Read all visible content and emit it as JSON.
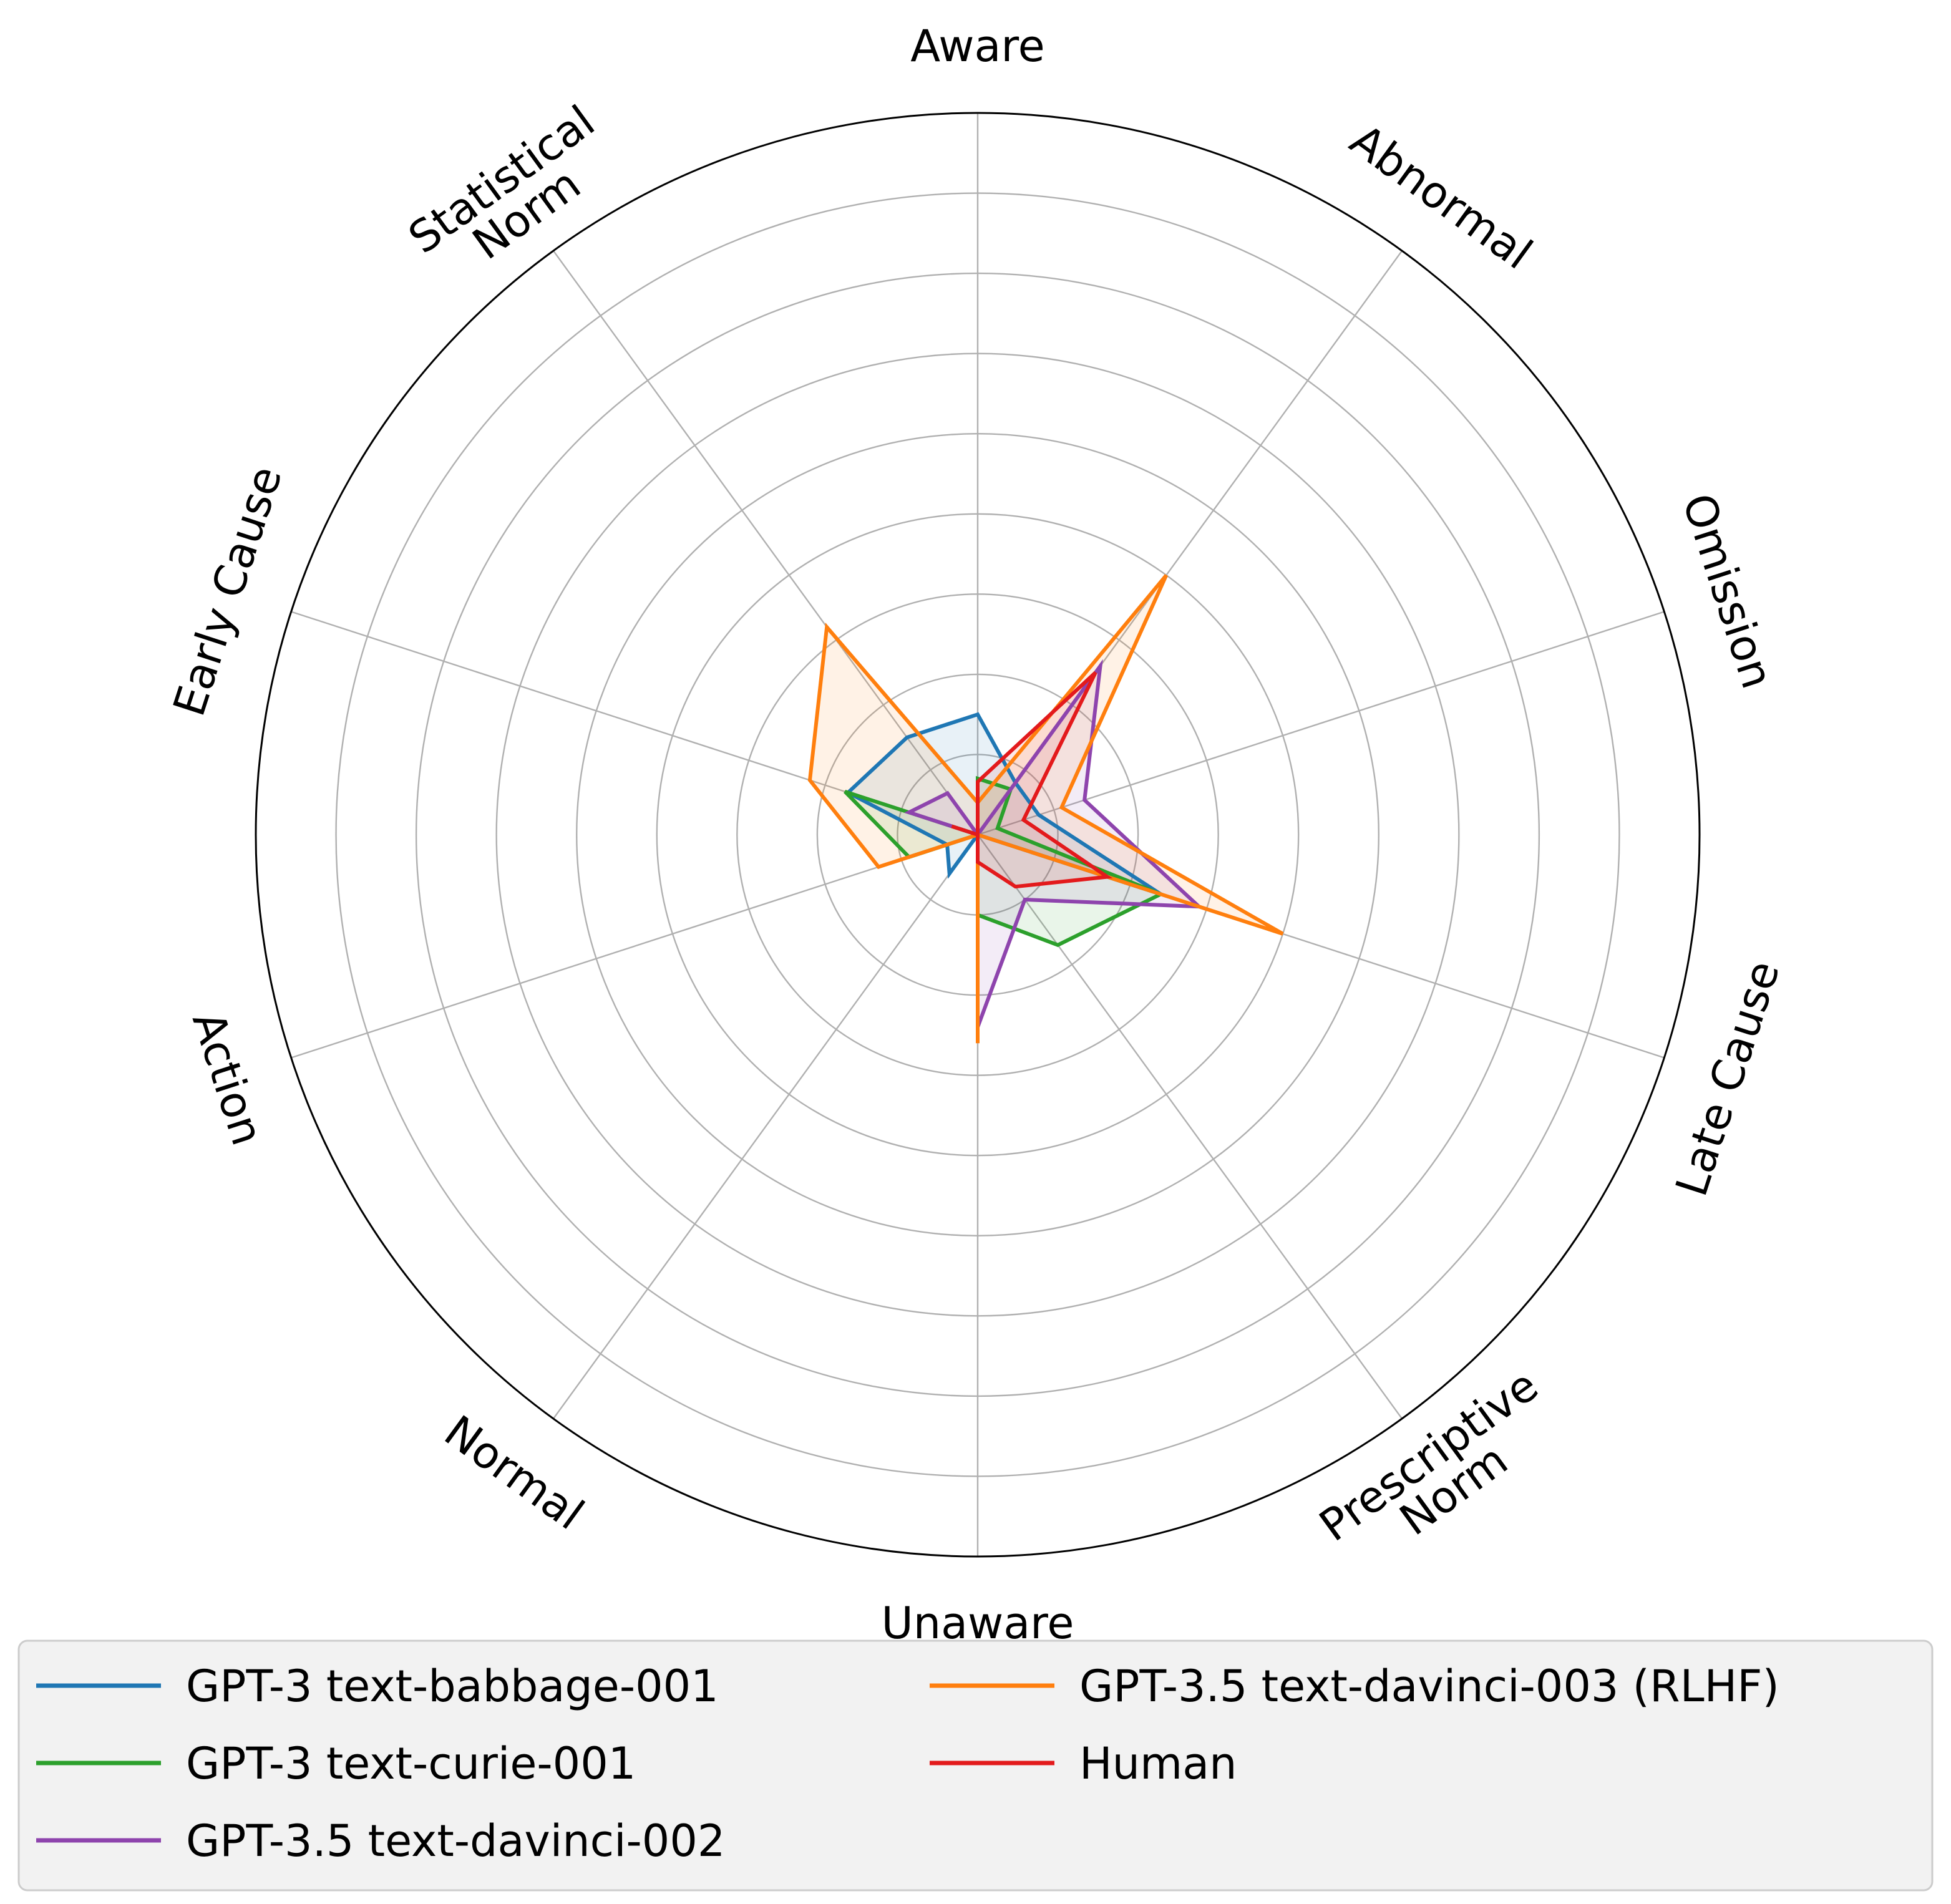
{
  "chart_data": {
    "type": "radar",
    "title": "",
    "axes": [
      "Aware",
      "Abnormal",
      "Omission",
      "Late Cause",
      "Prescriptive\nNorm",
      "Unaware",
      "Normal",
      "Action",
      "Early Cause",
      "Statistical\nNorm"
    ],
    "rlim": [
      0,
      0.45
    ],
    "grid": true,
    "grid_rings": [
      0.05,
      0.1,
      0.15,
      0.2,
      0.25,
      0.3,
      0.35,
      0.4
    ],
    "legend_position": "bottom",
    "legend_columns": 2,
    "series": [
      {
        "name": "GPT-3 text-babbage-001",
        "color": "#1f77b4",
        "values": [
          0.075,
          0.04,
          0.04,
          0.12,
          0.0,
          0.0,
          0.03,
          0.02,
          0.085,
          0.075
        ]
      },
      {
        "name": "GPT-3 text-curie-001",
        "color": "#2ca02c",
        "values": [
          0.035,
          0.035,
          0.013,
          0.12,
          0.085,
          0.05,
          0.0,
          0.045,
          0.087,
          0.0
        ]
      },
      {
        "name": "GPT-3.5 text-davinci-002",
        "color": "#8e44ad",
        "values": [
          0.0,
          0.13,
          0.07,
          0.145,
          0.05,
          0.12,
          0.0,
          0.0,
          0.045,
          0.032
        ]
      },
      {
        "name": "GPT-3.5 text-davinci-003 (RLHF)",
        "color": "#ff7f0e",
        "values": [
          0.02,
          0.2,
          0.055,
          0.2,
          0.0,
          0.13,
          0.0,
          0.065,
          0.11,
          0.16
        ]
      },
      {
        "name": "Human",
        "color": "#e31a1c",
        "values": [
          0.033,
          0.125,
          0.03,
          0.085,
          0.04,
          0.017,
          0.0,
          0.0,
          0.017,
          0.0
        ]
      }
    ]
  }
}
